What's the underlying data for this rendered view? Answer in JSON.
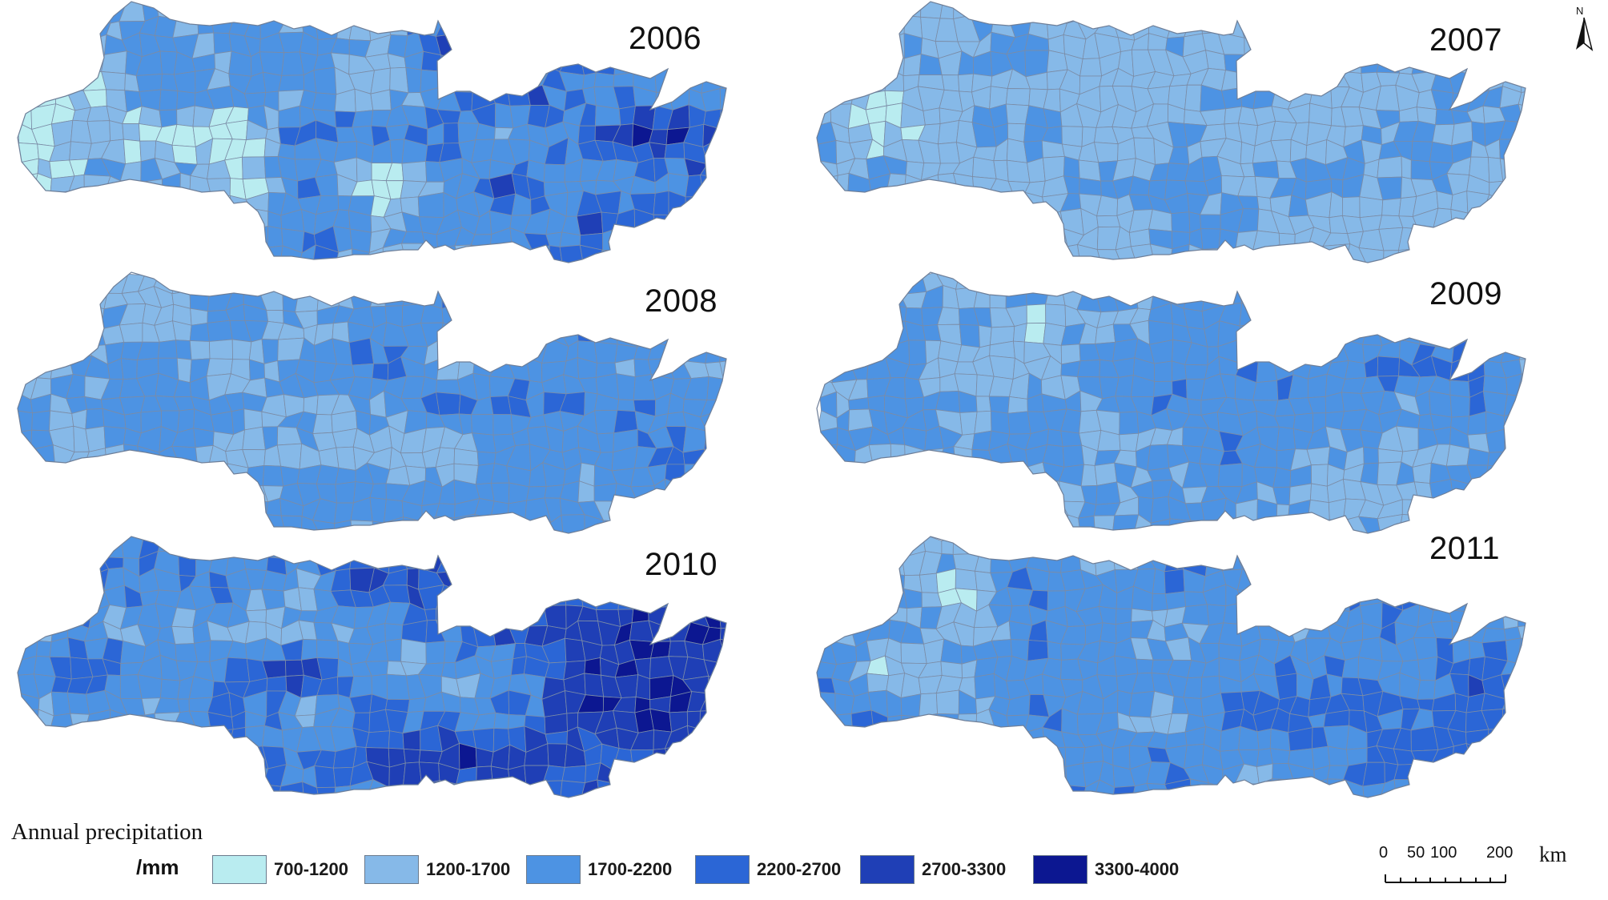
{
  "panels": [
    {
      "year": "2006",
      "pal": [
        0.28,
        0.15,
        0.25,
        0.15,
        0.12,
        0.05
      ],
      "eastBias": 2.0
    },
    {
      "year": "2007",
      "pal": [
        0.18,
        0.36,
        0.34,
        0.12,
        0.0,
        0.0
      ],
      "eastBias": 0.6
    },
    {
      "year": "2008",
      "pal": [
        0.06,
        0.3,
        0.34,
        0.2,
        0.1,
        0.0
      ],
      "eastBias": 1.0
    },
    {
      "year": "2009",
      "pal": [
        0.1,
        0.3,
        0.32,
        0.18,
        0.1,
        0.0
      ],
      "eastBias": 0.9
    },
    {
      "year": "2010",
      "pal": [
        0.08,
        0.18,
        0.2,
        0.22,
        0.22,
        0.1
      ],
      "eastBias": 1.8
    },
    {
      "year": "2011",
      "pal": [
        0.08,
        0.2,
        0.3,
        0.26,
        0.14,
        0.02
      ],
      "eastBias": 1.1
    }
  ],
  "legend": {
    "title": "Annual precipitation",
    "unit": "/mm",
    "classes": [
      {
        "label": "700-1200",
        "color": "#b9ecf0"
      },
      {
        "label": "1200-1700",
        "color": "#86b9e8"
      },
      {
        "label": "1700-2200",
        "color": "#4d93e3"
      },
      {
        "label": "2200-2700",
        "color": "#2b66d6"
      },
      {
        "label": "2700-3300",
        "color": "#1f3fb6"
      },
      {
        "label": "3300-4000",
        "color": "#0c1791"
      }
    ]
  },
  "scale": {
    "ticks": [
      "0",
      "50",
      "100",
      "200"
    ],
    "unit": "km"
  },
  "north": {
    "label": "N"
  }
}
